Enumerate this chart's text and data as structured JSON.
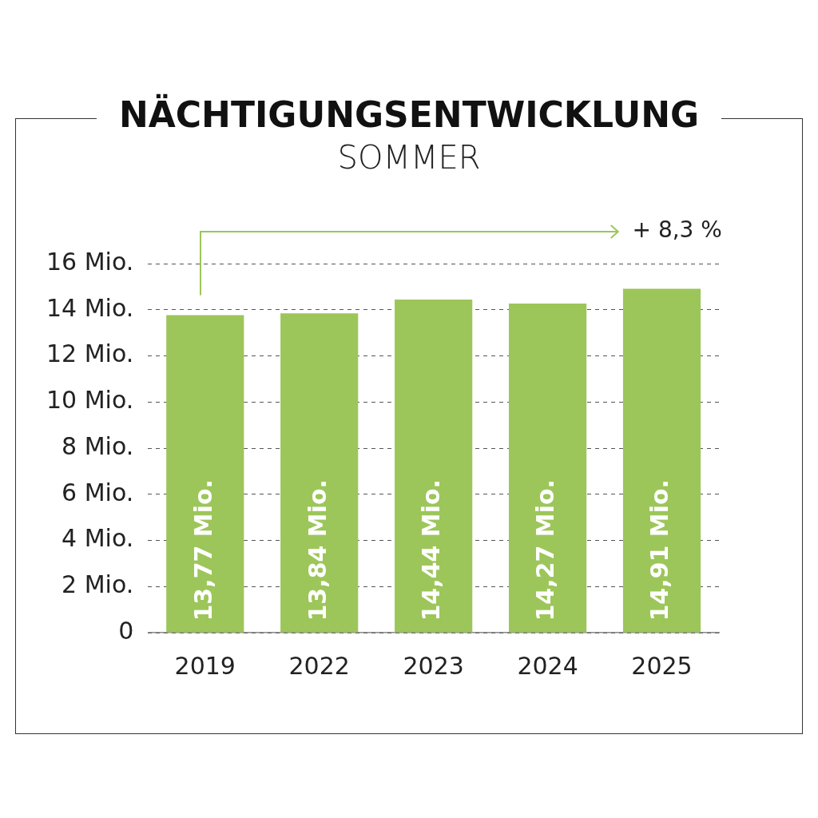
{
  "chart_data": {
    "type": "bar",
    "title": "NÄCHTIGUNGSENTWICKLUNG",
    "subtitle": "SOMMER",
    "categories": [
      "2019",
      "2022",
      "2023",
      "2024",
      "2025"
    ],
    "values": [
      13.77,
      13.84,
      14.44,
      14.27,
      14.91
    ],
    "value_labels": [
      "13,77 Mio.",
      "13,84 Mio.",
      "14,44 Mio.",
      "14,27 Mio.",
      "14,91 Mio."
    ],
    "color": "#9cc65a",
    "ylim": [
      0,
      16
    ],
    "yticks": [
      {
        "value": 0,
        "label": "0"
      },
      {
        "value": 2,
        "label": "2 Mio."
      },
      {
        "value": 4,
        "label": "4 Mio."
      },
      {
        "value": 6,
        "label": "6 Mio."
      },
      {
        "value": 8,
        "label": "8 Mio."
      },
      {
        "value": 10,
        "label": "10 Mio."
      },
      {
        "value": 12,
        "label": "12 Mio."
      },
      {
        "value": 14,
        "label": "14 Mio."
      },
      {
        "value": 16,
        "label": "16 Mio."
      }
    ],
    "grid": "y",
    "annotations": [
      "+ 8,3 %"
    ]
  }
}
